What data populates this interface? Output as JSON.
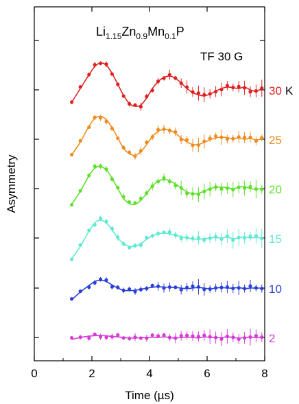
{
  "chart_data": {
    "type": "scatter",
    "title_parts": [
      "Li",
      "1.15",
      "Zn",
      "0.9",
      "Mn",
      "0.1",
      "P"
    ],
    "annotation": "TF 30 G",
    "xlabel": "Time (µs)",
    "ylabel": "Asymmetry",
    "xlim": [
      0,
      8
    ],
    "x_ticks": [
      "0",
      "2",
      "4",
      "6",
      "8"
    ],
    "unit_label": "K",
    "grid": false,
    "series": [
      {
        "name": "30",
        "color": "#e02020",
        "x": [
          1.3,
          1.6,
          1.9,
          2.1,
          2.3,
          2.5,
          2.7,
          2.9,
          3.1,
          3.3,
          3.5,
          3.7,
          3.9,
          4.1,
          4.3,
          4.5,
          4.7,
          4.9,
          5.1,
          5.3,
          5.5,
          5.7,
          5.9,
          6.1,
          6.3,
          6.5,
          6.7,
          6.9,
          7.1,
          7.3,
          7.5,
          7.7,
          7.9
        ],
        "y": [
          -0.45,
          0.05,
          0.55,
          0.85,
          0.98,
          0.9,
          0.6,
          0.2,
          -0.2,
          -0.5,
          -0.6,
          -0.55,
          -0.3,
          0.05,
          0.3,
          0.45,
          0.5,
          0.42,
          0.25,
          0.05,
          -0.1,
          -0.18,
          -0.22,
          -0.15,
          -0.05,
          0.05,
          0.1,
          0.08,
          0.05,
          0.1,
          0.0,
          -0.05,
          0.05
        ]
      },
      {
        "name": "25",
        "color": "#f08c1e",
        "x": [
          1.3,
          1.6,
          1.9,
          2.1,
          2.3,
          2.5,
          2.7,
          2.9,
          3.1,
          3.3,
          3.5,
          3.7,
          3.9,
          4.1,
          4.3,
          4.5,
          4.7,
          4.9,
          5.1,
          5.3,
          5.5,
          5.7,
          5.9,
          6.1,
          6.3,
          6.5,
          6.7,
          6.9,
          7.1,
          7.3,
          7.5,
          7.7,
          7.9
        ],
        "y": [
          -0.6,
          -0.1,
          0.5,
          0.8,
          0.88,
          0.75,
          0.45,
          0.05,
          -0.35,
          -0.55,
          -0.62,
          -0.48,
          -0.2,
          0.1,
          0.3,
          0.38,
          0.35,
          0.22,
          0.05,
          -0.1,
          -0.2,
          -0.2,
          -0.12,
          -0.02,
          0.05,
          0.08,
          0.06,
          0.02,
          0.05,
          0.0,
          0.03,
          -0.02,
          0.0
        ]
      },
      {
        "name": "20",
        "color": "#5ee02a",
        "x": [
          1.3,
          1.6,
          1.9,
          2.1,
          2.3,
          2.5,
          2.7,
          2.9,
          3.1,
          3.3,
          3.5,
          3.7,
          3.9,
          4.1,
          4.3,
          4.5,
          4.7,
          4.9,
          5.1,
          5.3,
          5.5,
          5.7,
          5.9,
          6.1,
          6.3,
          6.5,
          6.7,
          6.9,
          7.1,
          7.3,
          7.5,
          7.7,
          7.9
        ],
        "y": [
          -0.6,
          -0.1,
          0.5,
          0.78,
          0.85,
          0.72,
          0.4,
          0.0,
          -0.38,
          -0.58,
          -0.6,
          -0.45,
          -0.18,
          0.1,
          0.28,
          0.35,
          0.3,
          0.18,
          0.02,
          -0.12,
          -0.2,
          -0.18,
          -0.1,
          0.0,
          0.05,
          0.06,
          0.04,
          0.0,
          0.05,
          0.08,
          0.0,
          -0.02,
          0.0
        ]
      },
      {
        "name": "15",
        "color": "#5ee8d2",
        "x": [
          1.3,
          1.6,
          1.9,
          2.1,
          2.3,
          2.5,
          2.7,
          2.9,
          3.1,
          3.3,
          3.5,
          3.7,
          3.9,
          4.1,
          4.3,
          4.5,
          4.7,
          4.9,
          5.1,
          5.3,
          5.5,
          5.7,
          5.9,
          6.1,
          6.3,
          6.5,
          6.7,
          6.9,
          7.1,
          7.3,
          7.5,
          7.7,
          7.9
        ],
        "y": [
          -0.75,
          -0.3,
          0.25,
          0.55,
          0.65,
          0.55,
          0.3,
          0.0,
          -0.2,
          -0.3,
          -0.3,
          -0.2,
          -0.05,
          0.08,
          0.15,
          0.18,
          0.15,
          0.1,
          0.05,
          0.0,
          -0.03,
          -0.05,
          -0.02,
          0.0,
          0.02,
          0.0,
          0.03,
          -0.02,
          0.0,
          0.05,
          0.0,
          0.02,
          0.0
        ]
      },
      {
        "name": "10",
        "color": "#2a3fd6",
        "x": [
          1.3,
          1.6,
          1.9,
          2.1,
          2.3,
          2.5,
          2.7,
          2.9,
          3.1,
          3.3,
          3.5,
          3.7,
          3.9,
          4.1,
          4.3,
          4.5,
          4.7,
          4.9,
          5.1,
          5.3,
          5.5,
          5.7,
          5.9,
          6.1,
          6.3,
          6.5,
          6.7,
          6.9,
          7.1,
          7.3,
          7.5,
          7.7,
          7.9
        ],
        "y": [
          -0.45,
          -0.15,
          0.1,
          0.25,
          0.3,
          0.25,
          0.12,
          0.0,
          -0.08,
          -0.1,
          -0.08,
          -0.05,
          0.0,
          0.03,
          0.05,
          0.04,
          0.03,
          0.02,
          0.0,
          -0.02,
          0.0,
          0.02,
          0.0,
          -0.03,
          0.0,
          0.02,
          0.0,
          0.0,
          0.02,
          -0.02,
          0.0,
          0.0,
          0.0
        ]
      },
      {
        "name": "2",
        "color": "#d63ad6",
        "x": [
          1.3,
          1.6,
          1.9,
          2.1,
          2.3,
          2.5,
          2.7,
          2.9,
          3.1,
          3.3,
          3.5,
          3.7,
          3.9,
          4.1,
          4.3,
          4.5,
          4.7,
          4.9,
          5.1,
          5.3,
          5.5,
          5.7,
          5.9,
          6.1,
          6.3,
          6.5,
          6.7,
          6.9,
          7.1,
          7.3,
          7.5,
          7.7,
          7.9
        ],
        "y": [
          -0.08,
          0.0,
          0.05,
          0.07,
          0.08,
          0.06,
          0.04,
          0.02,
          0.0,
          -0.02,
          -0.02,
          -0.01,
          0.0,
          0.01,
          0.0,
          0.02,
          0.0,
          -0.02,
          0.0,
          0.01,
          0.0,
          -0.02,
          0.02,
          0.0,
          -0.01,
          0.0,
          0.02,
          0.0,
          -0.02,
          0.0,
          0.01,
          0.0,
          0.0
        ]
      }
    ]
  }
}
